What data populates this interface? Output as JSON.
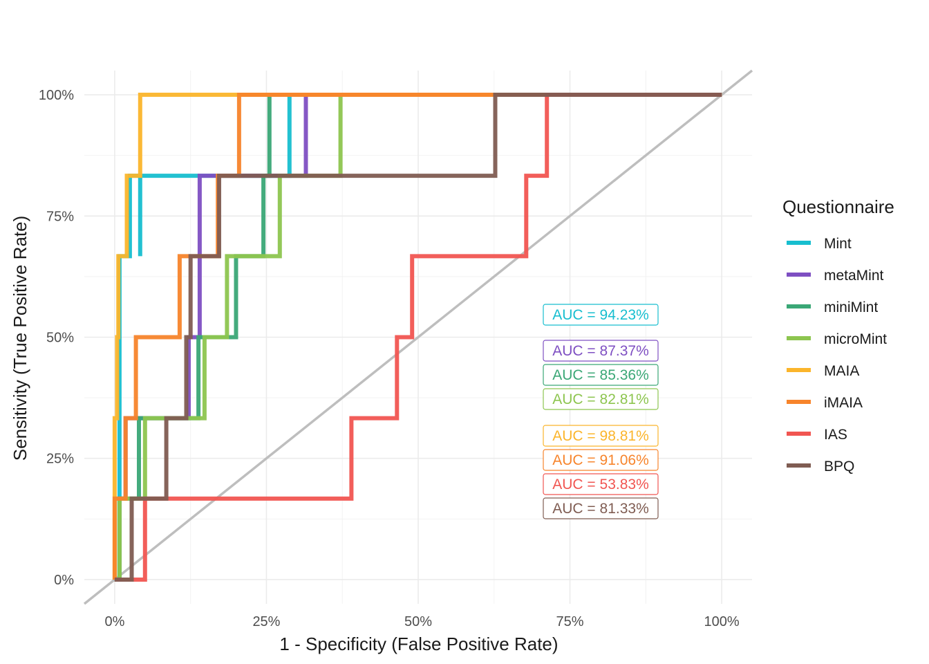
{
  "chart_data": {
    "type": "line",
    "xlabel": "1 - Specificity (False Positive Rate)",
    "ylabel": "Sensitivity (True Positive Rate)",
    "xlim": [
      -0.05,
      1.05
    ],
    "ylim": [
      -0.05,
      1.05
    ],
    "x_ticks": [
      0,
      0.25,
      0.5,
      0.75,
      1.0
    ],
    "x_tick_labels": [
      "0%",
      "25%",
      "50%",
      "75%",
      "100%"
    ],
    "y_ticks": [
      0,
      0.25,
      0.5,
      0.75,
      1.0
    ],
    "y_tick_labels": [
      "0%",
      "25%",
      "50%",
      "75%",
      "100%"
    ],
    "grid": true,
    "diagonal_color": "#bebebe",
    "legend": {
      "title": "Questionnaire",
      "position": "right"
    },
    "series": [
      {
        "name": "Mint",
        "color": "#17becf",
        "auc_label": "AUC = 94.23%",
        "points": [
          [
            0,
            0
          ],
          [
            0.008,
            0
          ],
          [
            0.008,
            0.333
          ],
          [
            0.008,
            0.5
          ],
          [
            0.008,
            0.667
          ],
          [
            0.025,
            0.667
          ],
          [
            0.025,
            0.833
          ],
          [
            0.042,
            0.833
          ],
          [
            0.042,
            0.667
          ],
          [
            0.042,
            0.833
          ],
          [
            0.14,
            0.833
          ],
          [
            0.14,
            0.833
          ],
          [
            0.18,
            0.833
          ],
          [
            0.288,
            0.833
          ],
          [
            0.288,
            1.0
          ],
          [
            1.0,
            1.0
          ]
        ]
      },
      {
        "name": "metaMint",
        "color": "#7e4fc2",
        "auc_label": "AUC = 87.37%",
        "points": [
          [
            0,
            0
          ],
          [
            0.008,
            0
          ],
          [
            0.008,
            0.167
          ],
          [
            0.018,
            0.167
          ],
          [
            0.018,
            0.333
          ],
          [
            0.122,
            0.333
          ],
          [
            0.122,
            0.5
          ],
          [
            0.14,
            0.5
          ],
          [
            0.14,
            0.833
          ],
          [
            0.315,
            0.833
          ],
          [
            0.315,
            1.0
          ],
          [
            1.0,
            1.0
          ]
        ]
      },
      {
        "name": "miniMint",
        "color": "#3aa776",
        "auc_label": "AUC = 85.36%",
        "points": [
          [
            0,
            0
          ],
          [
            0.008,
            0
          ],
          [
            0.008,
            0.167
          ],
          [
            0.04,
            0.167
          ],
          [
            0.04,
            0.333
          ],
          [
            0.138,
            0.333
          ],
          [
            0.138,
            0.5
          ],
          [
            0.2,
            0.5
          ],
          [
            0.2,
            0.667
          ],
          [
            0.245,
            0.667
          ],
          [
            0.245,
            0.833
          ],
          [
            0.255,
            0.833
          ],
          [
            0.255,
            1.0
          ],
          [
            1.0,
            1.0
          ]
        ]
      },
      {
        "name": "microMint",
        "color": "#8dc54f",
        "auc_label": "AUC = 82.81%",
        "points": [
          [
            0,
            0
          ],
          [
            0.008,
            0
          ],
          [
            0.008,
            0.167
          ],
          [
            0.05,
            0.167
          ],
          [
            0.05,
            0.333
          ],
          [
            0.148,
            0.333
          ],
          [
            0.148,
            0.5
          ],
          [
            0.185,
            0.5
          ],
          [
            0.185,
            0.667
          ],
          [
            0.272,
            0.667
          ],
          [
            0.272,
            0.833
          ],
          [
            0.372,
            0.833
          ],
          [
            0.372,
            1.0
          ],
          [
            1.0,
            1.0
          ]
        ]
      },
      {
        "name": "MAIA",
        "color": "#fbb52b",
        "auc_label": "AUC = 98.81%",
        "points": [
          [
            0,
            0
          ],
          [
            0,
            0.167
          ],
          [
            0,
            0.333
          ],
          [
            0.004,
            0.333
          ],
          [
            0.004,
            0.5
          ],
          [
            0.006,
            0.5
          ],
          [
            0.006,
            0.667
          ],
          [
            0.02,
            0.667
          ],
          [
            0.02,
            0.833
          ],
          [
            0.042,
            0.833
          ],
          [
            0.042,
            1.0
          ],
          [
            1.0,
            1.0
          ]
        ]
      },
      {
        "name": "iMAIA",
        "color": "#f7842b",
        "auc_label": "AUC = 91.06%",
        "points": [
          [
            0,
            0
          ],
          [
            0,
            0.167
          ],
          [
            0.018,
            0.167
          ],
          [
            0.018,
            0.333
          ],
          [
            0.035,
            0.333
          ],
          [
            0.035,
            0.5
          ],
          [
            0.107,
            0.5
          ],
          [
            0.107,
            0.667
          ],
          [
            0.17,
            0.667
          ],
          [
            0.17,
            0.833
          ],
          [
            0.205,
            0.833
          ],
          [
            0.205,
            1.0
          ],
          [
            1.0,
            1.0
          ]
        ]
      },
      {
        "name": "IAS",
        "color": "#f15551",
        "auc_label": "AUC = 53.83%",
        "points": [
          [
            0,
            0
          ],
          [
            0.05,
            0
          ],
          [
            0.05,
            0.167
          ],
          [
            0.39,
            0.167
          ],
          [
            0.39,
            0.333
          ],
          [
            0.465,
            0.333
          ],
          [
            0.465,
            0.5
          ],
          [
            0.49,
            0.5
          ],
          [
            0.49,
            0.667
          ],
          [
            0.678,
            0.667
          ],
          [
            0.678,
            0.833
          ],
          [
            0.712,
            0.833
          ],
          [
            0.712,
            1.0
          ],
          [
            1.0,
            1.0
          ]
        ]
      },
      {
        "name": "BPQ",
        "color": "#7f5c52",
        "auc_label": "AUC = 81.33%",
        "points": [
          [
            0,
            0
          ],
          [
            0.028,
            0
          ],
          [
            0.028,
            0.167
          ],
          [
            0.085,
            0.167
          ],
          [
            0.085,
            0.333
          ],
          [
            0.118,
            0.333
          ],
          [
            0.118,
            0.5
          ],
          [
            0.125,
            0.5
          ],
          [
            0.125,
            0.667
          ],
          [
            0.172,
            0.667
          ],
          [
            0.172,
            0.833
          ],
          [
            0.627,
            0.833
          ],
          [
            0.627,
            1.0
          ],
          [
            1.0,
            1.0
          ]
        ]
      }
    ]
  }
}
